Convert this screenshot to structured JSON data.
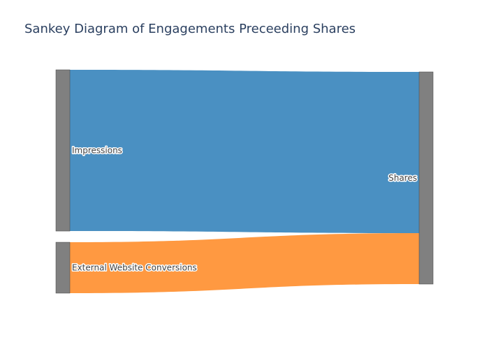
{
  "title": "Sankey Diagram of Engagements Preceeding Shares",
  "chart_data": {
    "type": "sankey",
    "nodes": [
      {
        "label": "Impressions",
        "color": "#808080"
      },
      {
        "label": "External Website Conversions",
        "color": "#808080"
      },
      {
        "label": "Shares",
        "color": "#808080"
      }
    ],
    "links": [
      {
        "source": "Impressions",
        "target": "Shares",
        "value": 76,
        "color": "#4a90c2"
      },
      {
        "source": "External Website Conversions",
        "target": "Shares",
        "value": 24,
        "color": "#ff9941"
      }
    ]
  }
}
